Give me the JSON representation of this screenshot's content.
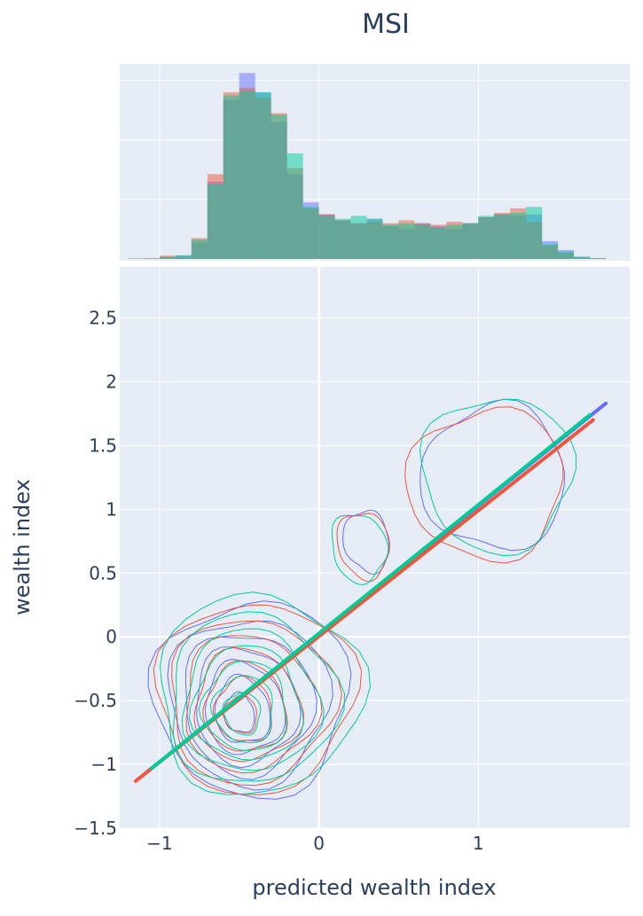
{
  "chart_data": {
    "type": "scatter",
    "title": "MSI",
    "xlabel": "predicted wealth index",
    "ylabel": "wealth index",
    "xlim": [
      -1.25,
      1.95
    ],
    "ylim": [
      -1.5,
      2.9
    ],
    "x_ticks": [
      -1,
      0,
      1
    ],
    "x_tick_labels": [
      "−1",
      "0",
      "1"
    ],
    "y_ticks": [
      -1.5,
      -1,
      -0.5,
      0,
      0.5,
      1,
      1.5,
      2,
      2.5
    ],
    "y_tick_labels": [
      "−1.5",
      "−1",
      "−0.5",
      "0",
      "0.5",
      "1",
      "1.5",
      "2",
      "2.5"
    ],
    "grid": true,
    "marginal": "histogram",
    "colors": {
      "plot_bg": "#e5ecf6",
      "grid": "#ffffff",
      "text": "#2a3f5f"
    },
    "series": [
      {
        "color": "#636efa",
        "trendline": {
          "x": [
            -1.1,
            1.8
          ],
          "y": [
            -1.08,
            1.83
          ]
        },
        "histogram": {
          "bin_edges": [
            -1.2,
            -1.1,
            -1.0,
            -0.9,
            -0.8,
            -0.7,
            -0.6,
            -0.5,
            -0.4,
            -0.3,
            -0.2,
            -0.1,
            0.0,
            0.1,
            0.2,
            0.3,
            0.4,
            0.5,
            0.6,
            0.7,
            0.8,
            0.9,
            1.0,
            1.1,
            1.2,
            1.3,
            1.4,
            1.5,
            1.6,
            1.7,
            1.8
          ],
          "counts": [
            0.2,
            0.3,
            1.2,
            2.2,
            11,
            52,
            107,
            125,
            112,
            92,
            57,
            38,
            30,
            26,
            24,
            27,
            22,
            20,
            24,
            22,
            20,
            24,
            28,
            30,
            29,
            30,
            12,
            6,
            1.5,
            0.5
          ]
        },
        "contours": [
          {
            "cx": -0.42,
            "cy": -0.48,
            "rx": 0.65,
            "ry": 0.78
          },
          {
            "cx": -0.44,
            "cy": -0.5,
            "rx": 0.53,
            "ry": 0.67
          },
          {
            "cx": -0.45,
            "cy": -0.52,
            "rx": 0.43,
            "ry": 0.57
          },
          {
            "cx": -0.46,
            "cy": -0.54,
            "rx": 0.34,
            "ry": 0.47
          },
          {
            "cx": -0.47,
            "cy": -0.56,
            "rx": 0.26,
            "ry": 0.37
          },
          {
            "cx": -0.48,
            "cy": -0.58,
            "rx": 0.18,
            "ry": 0.27
          },
          {
            "cx": -0.5,
            "cy": -0.6,
            "rx": 0.1,
            "ry": 0.16
          },
          {
            "cx": 1.1,
            "cy": 1.25,
            "rx": 0.48,
            "ry": 0.58
          },
          {
            "cx": 0.3,
            "cy": 0.75,
            "rx": 0.15,
            "ry": 0.25
          }
        ]
      },
      {
        "color": "#ef553b",
        "trendline": {
          "x": [
            -1.15,
            1.72
          ],
          "y": [
            -1.13,
            1.7
          ]
        },
        "histogram": {
          "bin_edges": [
            -1.2,
            -1.1,
            -1.0,
            -0.9,
            -0.8,
            -0.7,
            -0.6,
            -0.5,
            -0.4,
            -0.3,
            -0.2,
            -0.1,
            0.0,
            0.1,
            0.2,
            0.3,
            0.4,
            0.5,
            0.6,
            0.7,
            0.8,
            0.9,
            1.0,
            1.1,
            1.2,
            1.3,
            1.4,
            1.5,
            1.6,
            1.7,
            1.8
          ],
          "counts": [
            0.3,
            0.5,
            2.2,
            1.5,
            14,
            57,
            112,
            115,
            108,
            98,
            61,
            34,
            30,
            26,
            24,
            25,
            24,
            26,
            24,
            23,
            25,
            24,
            28,
            31,
            34,
            25,
            9,
            4,
            1,
            0.5
          ]
        },
        "contours": [
          {
            "cx": -0.4,
            "cy": -0.47,
            "rx": 0.66,
            "ry": 0.76
          },
          {
            "cx": -0.43,
            "cy": -0.5,
            "rx": 0.55,
            "ry": 0.66
          },
          {
            "cx": -0.44,
            "cy": -0.52,
            "rx": 0.44,
            "ry": 0.55
          },
          {
            "cx": -0.45,
            "cy": -0.54,
            "rx": 0.35,
            "ry": 0.45
          },
          {
            "cx": -0.46,
            "cy": -0.56,
            "rx": 0.27,
            "ry": 0.36
          },
          {
            "cx": -0.47,
            "cy": -0.58,
            "rx": 0.19,
            "ry": 0.26
          },
          {
            "cx": -0.49,
            "cy": -0.61,
            "rx": 0.11,
            "ry": 0.15
          },
          {
            "cx": 1.05,
            "cy": 1.2,
            "rx": 0.52,
            "ry": 0.6
          },
          {
            "cx": 0.28,
            "cy": 0.72,
            "rx": 0.17,
            "ry": 0.27
          }
        ]
      },
      {
        "color": "#00cc96",
        "trendline": {
          "x": [
            -1.05,
            1.7
          ],
          "y": [
            -1.03,
            1.74
          ]
        },
        "histogram": {
          "bin_edges": [
            -1.2,
            -1.1,
            -1.0,
            -0.9,
            -0.8,
            -0.7,
            -0.6,
            -0.5,
            -0.4,
            -0.3,
            -0.2,
            -0.1,
            0.0,
            0.1,
            0.2,
            0.3,
            0.4,
            0.5,
            0.6,
            0.7,
            0.8,
            0.9,
            1.0,
            1.1,
            1.2,
            1.3,
            1.4,
            1.5,
            1.6,
            1.7,
            1.8
          ],
          "counts": [
            0.2,
            0.3,
            1.5,
            2.5,
            13,
            50,
            110,
            113,
            112,
            97,
            71,
            35,
            29,
            27,
            29,
            27,
            23,
            24,
            23,
            21,
            23,
            24,
            29,
            30,
            31,
            35,
            10,
            5,
            1.5,
            0.5
          ]
        },
        "contours": [
          {
            "cx": -0.38,
            "cy": -0.45,
            "rx": 0.68,
            "ry": 0.8
          },
          {
            "cx": -0.42,
            "cy": -0.49,
            "rx": 0.56,
            "ry": 0.68
          },
          {
            "cx": -0.43,
            "cy": -0.51,
            "rx": 0.45,
            "ry": 0.57
          },
          {
            "cx": -0.45,
            "cy": -0.53,
            "rx": 0.36,
            "ry": 0.46
          },
          {
            "cx": -0.46,
            "cy": -0.55,
            "rx": 0.28,
            "ry": 0.36
          },
          {
            "cx": -0.47,
            "cy": -0.57,
            "rx": 0.2,
            "ry": 0.27
          },
          {
            "cx": -0.48,
            "cy": -0.6,
            "rx": 0.12,
            "ry": 0.17
          },
          {
            "cx": 1.12,
            "cy": 1.28,
            "rx": 0.5,
            "ry": 0.62
          },
          {
            "cx": 0.25,
            "cy": 0.7,
            "rx": 0.18,
            "ry": 0.28
          }
        ]
      }
    ]
  }
}
